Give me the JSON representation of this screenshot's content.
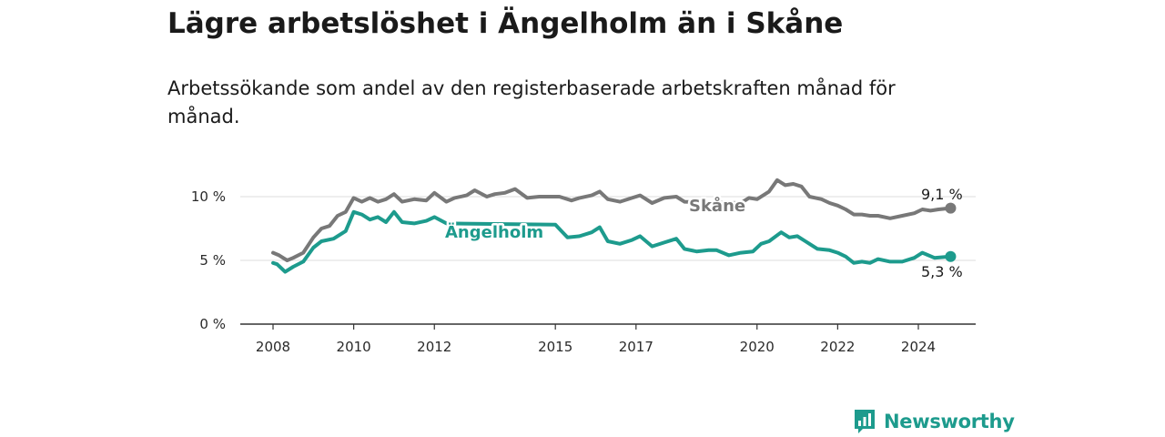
{
  "title": "Lägre arbetslöshet i Ängelholm än i Skåne",
  "subtitle": "Arbetssökande som andel av den registerbaserade arbetskraften månad för månad.",
  "brand": {
    "name": "Newsworthy",
    "color": "#1d9b8d"
  },
  "chart_data": {
    "type": "line",
    "title": "Lägre arbetslöshet i Ängelholm än i Skåne",
    "xlabel": "",
    "ylabel": "",
    "xlim": [
      2008,
      2025.25
    ],
    "ylim": [
      0,
      12
    ],
    "y_ticks": [
      {
        "value": 0,
        "label": "0 %"
      },
      {
        "value": 5,
        "label": "5 %"
      },
      {
        "value": 10,
        "label": "10 %"
      }
    ],
    "x_ticks": [
      {
        "value": 2008,
        "label": "2008"
      },
      {
        "value": 2010,
        "label": "2010"
      },
      {
        "value": 2012,
        "label": "2012"
      },
      {
        "value": 2015,
        "label": "2015"
      },
      {
        "value": 2017,
        "label": "2017"
      },
      {
        "value": 2020,
        "label": "2020"
      },
      {
        "value": 2022,
        "label": "2022"
      },
      {
        "value": 2024,
        "label": "2024"
      }
    ],
    "grid": true,
    "series": [
      {
        "name": "Skåne",
        "color": "#787878",
        "end_label": "9,1 %",
        "points": [
          [
            2008.0,
            5.6
          ],
          [
            2008.15,
            5.4
          ],
          [
            2008.35,
            5.0
          ],
          [
            2008.5,
            5.2
          ],
          [
            2008.75,
            5.6
          ],
          [
            2009.0,
            6.8
          ],
          [
            2009.2,
            7.5
          ],
          [
            2009.4,
            7.7
          ],
          [
            2009.6,
            8.5
          ],
          [
            2009.8,
            8.8
          ],
          [
            2010.0,
            9.9
          ],
          [
            2010.2,
            9.6
          ],
          [
            2010.4,
            9.9
          ],
          [
            2010.6,
            9.6
          ],
          [
            2010.8,
            9.8
          ],
          [
            2011.0,
            10.2
          ],
          [
            2011.2,
            9.6
          ],
          [
            2011.5,
            9.8
          ],
          [
            2011.8,
            9.7
          ],
          [
            2012.0,
            10.3
          ],
          [
            2012.3,
            9.6
          ],
          [
            2012.5,
            9.9
          ],
          [
            2012.8,
            10.1
          ],
          [
            2013.0,
            10.5
          ],
          [
            2013.3,
            10.0
          ],
          [
            2013.5,
            10.2
          ],
          [
            2013.75,
            10.3
          ],
          [
            2014.0,
            10.6
          ],
          [
            2014.3,
            9.9
          ],
          [
            2014.6,
            10.0
          ],
          [
            2014.9,
            10.0
          ],
          [
            2015.1,
            10.0
          ],
          [
            2015.4,
            9.7
          ],
          [
            2015.6,
            9.9
          ],
          [
            2015.9,
            10.1
          ],
          [
            2016.1,
            10.4
          ],
          [
            2016.3,
            9.8
          ],
          [
            2016.6,
            9.6
          ],
          [
            2016.9,
            9.9
          ],
          [
            2017.1,
            10.1
          ],
          [
            2017.4,
            9.5
          ],
          [
            2017.7,
            9.9
          ],
          [
            2018.0,
            10.0
          ],
          [
            2018.2,
            9.6
          ],
          [
            2019.6,
            9.5
          ],
          [
            2019.8,
            9.9
          ],
          [
            2020.0,
            9.8
          ],
          [
            2020.3,
            10.4
          ],
          [
            2020.5,
            11.3
          ],
          [
            2020.7,
            10.9
          ],
          [
            2020.9,
            11.0
          ],
          [
            2021.1,
            10.8
          ],
          [
            2021.3,
            10.0
          ],
          [
            2021.6,
            9.8
          ],
          [
            2021.8,
            9.5
          ],
          [
            2022.0,
            9.3
          ],
          [
            2022.2,
            9.0
          ],
          [
            2022.4,
            8.6
          ],
          [
            2022.6,
            8.6
          ],
          [
            2022.8,
            8.5
          ],
          [
            2023.0,
            8.5
          ],
          [
            2023.3,
            8.3
          ],
          [
            2023.6,
            8.5
          ],
          [
            2023.9,
            8.7
          ],
          [
            2024.1,
            9.0
          ],
          [
            2024.3,
            8.9
          ],
          [
            2024.5,
            9.0
          ],
          [
            2024.8,
            9.1
          ]
        ]
      },
      {
        "name": "Ängelholm",
        "color": "#1d9b8d",
        "end_label": "5,3 %",
        "points": [
          [
            2008.0,
            4.8
          ],
          [
            2008.1,
            4.7
          ],
          [
            2008.3,
            4.1
          ],
          [
            2008.5,
            4.5
          ],
          [
            2008.75,
            4.9
          ],
          [
            2009.0,
            6.0
          ],
          [
            2009.2,
            6.5
          ],
          [
            2009.5,
            6.7
          ],
          [
            2009.8,
            7.3
          ],
          [
            2010.0,
            8.8
          ],
          [
            2010.2,
            8.6
          ],
          [
            2010.4,
            8.2
          ],
          [
            2010.6,
            8.4
          ],
          [
            2010.8,
            8.0
          ],
          [
            2011.0,
            8.8
          ],
          [
            2011.2,
            8.0
          ],
          [
            2011.5,
            7.9
          ],
          [
            2011.8,
            8.1
          ],
          [
            2012.0,
            8.4
          ],
          [
            2012.3,
            7.9
          ],
          [
            2015.0,
            7.8
          ],
          [
            2015.3,
            6.8
          ],
          [
            2015.6,
            6.9
          ],
          [
            2015.9,
            7.2
          ],
          [
            2016.1,
            7.6
          ],
          [
            2016.3,
            6.5
          ],
          [
            2016.6,
            6.3
          ],
          [
            2016.9,
            6.6
          ],
          [
            2017.1,
            6.9
          ],
          [
            2017.4,
            6.1
          ],
          [
            2017.7,
            6.4
          ],
          [
            2018.0,
            6.7
          ],
          [
            2018.2,
            5.9
          ],
          [
            2018.5,
            5.7
          ],
          [
            2018.8,
            5.8
          ],
          [
            2019.0,
            5.8
          ],
          [
            2019.3,
            5.4
          ],
          [
            2019.6,
            5.6
          ],
          [
            2019.9,
            5.7
          ],
          [
            2020.1,
            6.3
          ],
          [
            2020.3,
            6.5
          ],
          [
            2020.6,
            7.2
          ],
          [
            2020.8,
            6.8
          ],
          [
            2021.0,
            6.9
          ],
          [
            2021.2,
            6.5
          ],
          [
            2021.5,
            5.9
          ],
          [
            2021.8,
            5.8
          ],
          [
            2022.0,
            5.6
          ],
          [
            2022.2,
            5.3
          ],
          [
            2022.4,
            4.8
          ],
          [
            2022.6,
            4.9
          ],
          [
            2022.8,
            4.8
          ],
          [
            2023.0,
            5.1
          ],
          [
            2023.3,
            4.9
          ],
          [
            2023.6,
            4.9
          ],
          [
            2023.9,
            5.2
          ],
          [
            2024.1,
            5.6
          ],
          [
            2024.4,
            5.2
          ],
          [
            2024.8,
            5.3
          ]
        ]
      }
    ]
  }
}
